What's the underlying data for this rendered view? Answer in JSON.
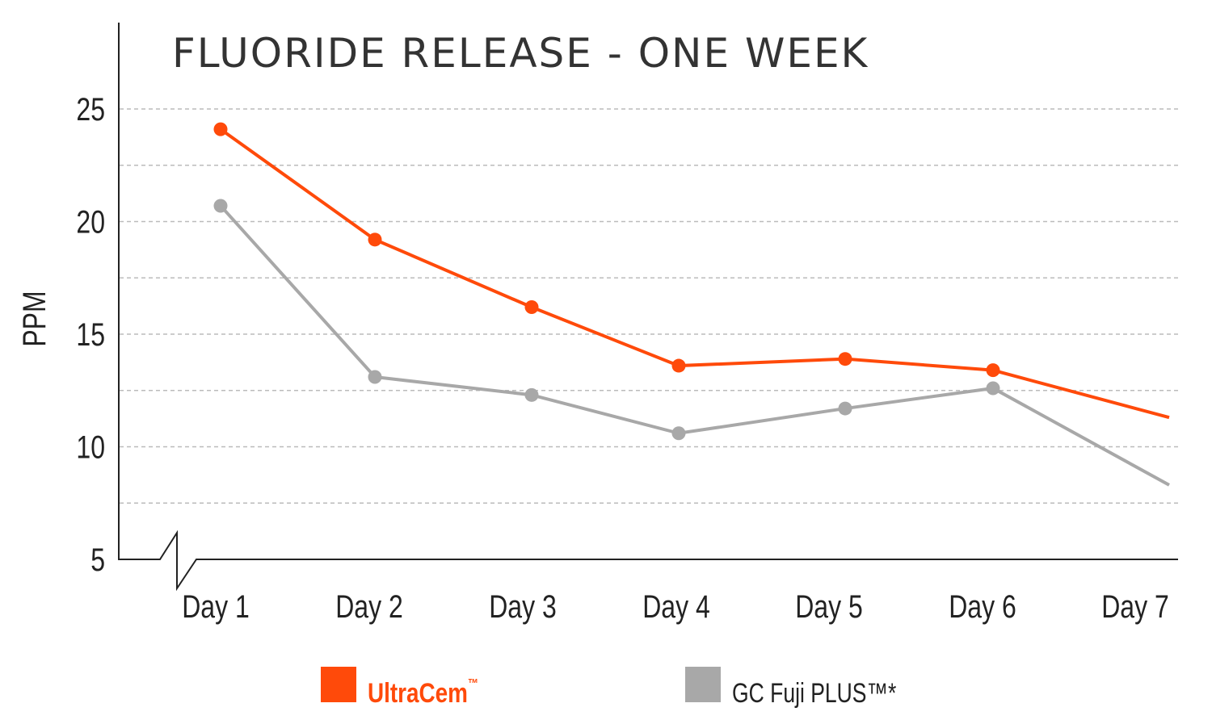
{
  "chart_data": {
    "type": "line",
    "title": "FLUORIDE RELEASE - ONE WEEK",
    "xlabel": "",
    "ylabel": "PPM",
    "categories": [
      "Day 1",
      "Day 2",
      "Day 3",
      "Day 4",
      "Day 5",
      "Day 6",
      "Day 7"
    ],
    "yticks": [
      "5",
      "10",
      "15",
      "20",
      "25"
    ],
    "ylim": [
      5,
      27.5
    ],
    "y_axis_break": true,
    "grid": "horizontal dashed every 2.5",
    "legend_position": "bottom",
    "series": [
      {
        "name": "UltraCem",
        "name_suffix": "™",
        "color": "#ff4a0a",
        "values": [
          24.1,
          19.2,
          16.2,
          13.6,
          13.9,
          13.4,
          11.3
        ]
      },
      {
        "name": "GC Fuji PLUS",
        "name_suffix": "™*",
        "color": "#a8a8a8",
        "values": [
          20.7,
          13.1,
          12.3,
          10.6,
          11.7,
          12.6,
          8.3
        ]
      }
    ]
  }
}
